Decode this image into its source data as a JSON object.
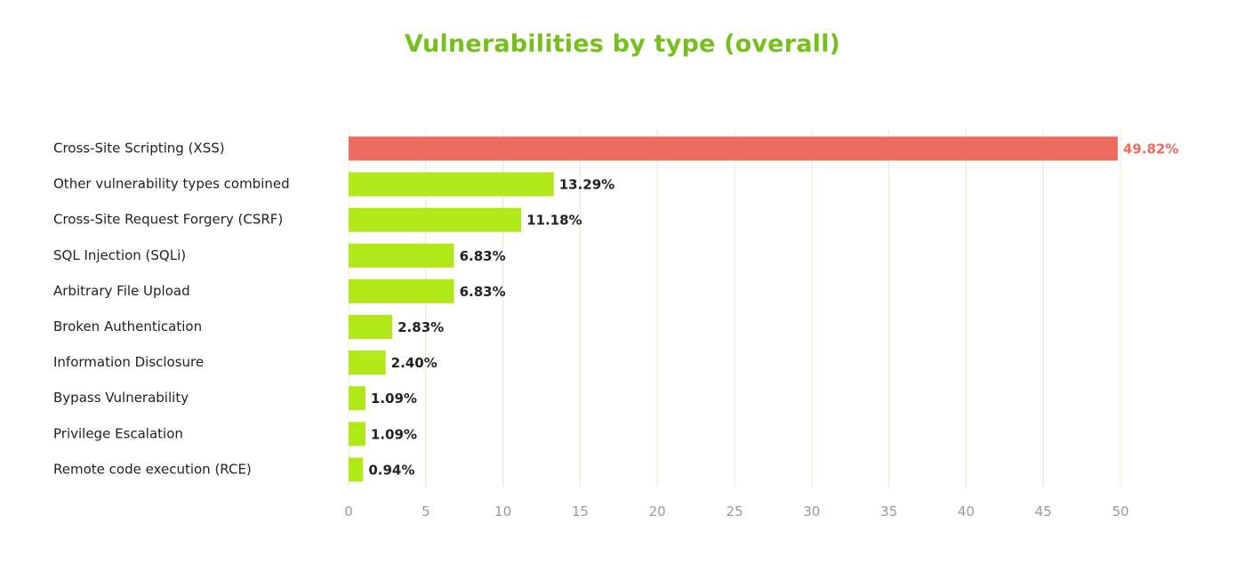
{
  "chart_data": {
    "type": "bar",
    "orientation": "horizontal",
    "title": "Vulnerabilities by type (overall)",
    "categories": [
      "Cross-Site Scripting (XSS)",
      "Other vulnerability types combined",
      "Cross-Site Request Forgery (CSRF)",
      "SQL Injection (SQLi)",
      "Arbitrary File Upload",
      "Broken Authentication",
      "Information Disclosure",
      "Bypass Vulnerability",
      "Privilege Escalation",
      "Remote code execution (RCE)"
    ],
    "values": [
      49.82,
      13.29,
      11.18,
      6.83,
      6.83,
      2.83,
      2.4,
      1.09,
      1.09,
      0.94
    ],
    "value_labels": [
      "49.82%",
      "13.29%",
      "11.18%",
      "6.83%",
      "6.83%",
      "2.83%",
      "2.40%",
      "1.09%",
      "1.09%",
      "0.94%"
    ],
    "xlim": [
      0,
      50
    ],
    "xticks": [
      0,
      5,
      10,
      15,
      20,
      25,
      30,
      35,
      40,
      45,
      50
    ],
    "grid": true,
    "colors": {
      "title": "#77bf1e",
      "bar": "#b1e81a",
      "highlight_bar": "#ec6a5f",
      "highlight_label": "#ec6a5f",
      "gridline": "#e4eccb"
    },
    "highlight_index": 0
  }
}
